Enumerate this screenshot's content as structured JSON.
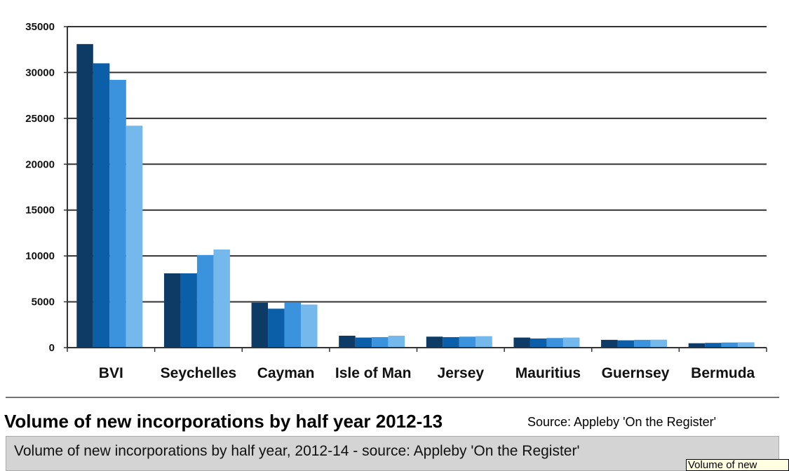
{
  "chart_data": {
    "type": "bar",
    "categories": [
      "BVI",
      "Seychelles",
      "Cayman",
      "Isle of Man",
      "Jersey",
      "Mauritius",
      "Guernsey",
      "Bermuda"
    ],
    "series": [
      {
        "values": [
          33100,
          8100,
          4900,
          1300,
          1200,
          1100,
          850,
          480
        ]
      },
      {
        "values": [
          31000,
          8100,
          4250,
          1100,
          1150,
          1000,
          800,
          520
        ]
      },
      {
        "values": [
          29200,
          10100,
          4900,
          1150,
          1200,
          1050,
          850,
          560
        ]
      },
      {
        "values": [
          24200,
          10700,
          4700,
          1300,
          1250,
          1100,
          870,
          580
        ]
      }
    ],
    "colors": [
      "#0e3b66",
      "#0a5fa8",
      "#3a93dc",
      "#75b9ec"
    ],
    "yticks": [
      "0",
      "5000",
      "10000",
      "15000",
      "20000",
      "25000",
      "30000",
      "35000"
    ],
    "ylim": [
      0,
      35000
    ],
    "grid": true,
    "title": "Volume of new incorporations by half year 2012-13",
    "xlabel": "",
    "ylabel": ""
  },
  "caption": {
    "title": "Volume of new incorporations by half year 2012-13",
    "source": "Source: Appleby 'On the Register'",
    "text": "Volume of new incorporations by half year, 2012-14 - source: Appleby 'On the Register'",
    "tooltip": "Volume of new"
  }
}
